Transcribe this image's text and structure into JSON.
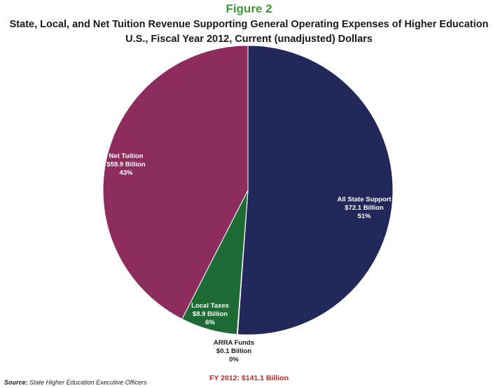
{
  "figure_label": "Figure 2",
  "title_line1": "State, Local, and Net Tuition Revenue Supporting General Operating Expenses of Higher Education",
  "title_line2": "U.S., Fiscal Year 2012, Current (unadjusted) Dollars",
  "source_prefix": "Source:",
  "source_text": "State Higher Education Executive Officers",
  "total_label": "FY 2012: $141.1 Billion",
  "colors": {
    "state": "#22285a",
    "arra": "#2b3f7a",
    "local": "#1e6b35",
    "tuition": "#8c2d5e",
    "title_green": "#3a9a3a",
    "total_red": "#d62020"
  },
  "chart_data": {
    "type": "pie",
    "title": "State, Local, and Net Tuition Revenue Supporting General Operating Expenses of Higher Education",
    "subtitle": "U.S., Fiscal Year 2012, Current (unadjusted) Dollars",
    "unit": "Billion",
    "slices": [
      {
        "name": "All State Support",
        "value": 72.1,
        "value_label": "$72.1 Billion",
        "percent_label": "51%",
        "color": "#22285a"
      },
      {
        "name": "ARRA Funds",
        "value": 0.1,
        "value_label": "$0.1 Billion",
        "percent_label": "0%",
        "color": "#2b3f7a"
      },
      {
        "name": "Local Taxes",
        "value": 8.9,
        "value_label": "$8.9 Billion",
        "percent_label": "6%",
        "color": "#1e6b35"
      },
      {
        "name": "Net Tuition",
        "value": 59.9,
        "value_label": "$59.9 Billion",
        "percent_label": "43%",
        "color": "#8c2d5e"
      }
    ],
    "total_label": "FY 2012: $141.1 Billion"
  }
}
